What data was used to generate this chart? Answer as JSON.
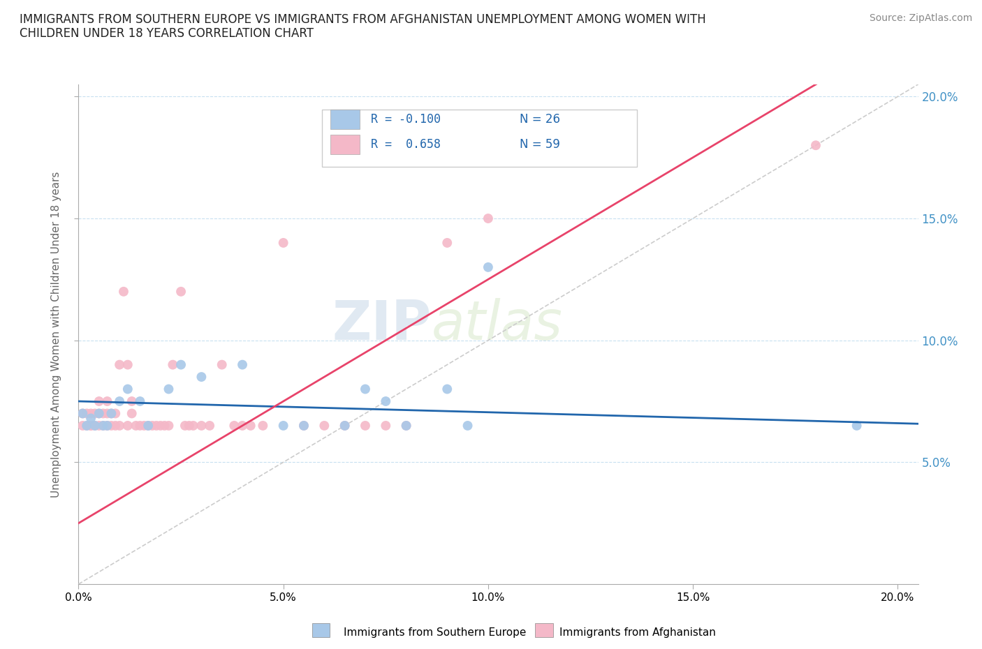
{
  "title": "IMMIGRANTS FROM SOUTHERN EUROPE VS IMMIGRANTS FROM AFGHANISTAN UNEMPLOYMENT AMONG WOMEN WITH\nCHILDREN UNDER 18 YEARS CORRELATION CHART",
  "source": "Source: ZipAtlas.com",
  "ylabel": "Unemployment Among Women with Children Under 18 years",
  "watermark_zip": "ZIP",
  "watermark_atlas": "atlas",
  "legend_r1": "R = -0.100",
  "legend_n1": "N = 26",
  "legend_r2": "R =  0.658",
  "legend_n2": "N = 59",
  "legend_label1": "Immigrants from Southern Europe",
  "legend_label2": "Immigrants from Afghanistan",
  "color_blue": "#a8c8e8",
  "color_pink": "#f4b8c8",
  "color_blue_line": "#2166ac",
  "color_pink_line": "#e8436a",
  "color_right_axis": "#4292c6",
  "color_grid": "#c8e0f0",
  "xlim": [
    0.0,
    0.205
  ],
  "ylim": [
    0.0,
    0.205
  ],
  "blue_x": [
    0.001,
    0.002,
    0.003,
    0.004,
    0.005,
    0.006,
    0.007,
    0.008,
    0.01,
    0.012,
    0.015,
    0.017,
    0.022,
    0.025,
    0.03,
    0.04,
    0.05,
    0.055,
    0.065,
    0.07,
    0.075,
    0.08,
    0.09,
    0.095,
    0.1,
    0.19
  ],
  "blue_y": [
    0.07,
    0.065,
    0.068,
    0.065,
    0.07,
    0.065,
    0.065,
    0.07,
    0.075,
    0.08,
    0.075,
    0.065,
    0.08,
    0.09,
    0.085,
    0.09,
    0.065,
    0.065,
    0.065,
    0.08,
    0.075,
    0.065,
    0.08,
    0.065,
    0.13,
    0.065
  ],
  "pink_x": [
    0.001,
    0.001,
    0.002,
    0.002,
    0.003,
    0.003,
    0.003,
    0.004,
    0.004,
    0.005,
    0.005,
    0.005,
    0.006,
    0.006,
    0.007,
    0.007,
    0.007,
    0.008,
    0.008,
    0.009,
    0.009,
    0.01,
    0.01,
    0.011,
    0.012,
    0.012,
    0.013,
    0.013,
    0.014,
    0.015,
    0.016,
    0.017,
    0.018,
    0.019,
    0.02,
    0.021,
    0.022,
    0.023,
    0.025,
    0.026,
    0.027,
    0.028,
    0.03,
    0.032,
    0.035,
    0.038,
    0.04,
    0.042,
    0.045,
    0.05,
    0.055,
    0.06,
    0.065,
    0.07,
    0.075,
    0.08,
    0.09,
    0.1,
    0.18
  ],
  "pink_y": [
    0.065,
    0.07,
    0.065,
    0.07,
    0.065,
    0.07,
    0.065,
    0.065,
    0.07,
    0.065,
    0.07,
    0.075,
    0.065,
    0.07,
    0.065,
    0.07,
    0.075,
    0.065,
    0.07,
    0.065,
    0.07,
    0.065,
    0.09,
    0.12,
    0.09,
    0.065,
    0.07,
    0.075,
    0.065,
    0.065,
    0.065,
    0.065,
    0.065,
    0.065,
    0.065,
    0.065,
    0.065,
    0.09,
    0.12,
    0.065,
    0.065,
    0.065,
    0.065,
    0.065,
    0.09,
    0.065,
    0.065,
    0.065,
    0.065,
    0.14,
    0.065,
    0.065,
    0.065,
    0.065,
    0.065,
    0.065,
    0.14,
    0.15,
    0.18
  ]
}
